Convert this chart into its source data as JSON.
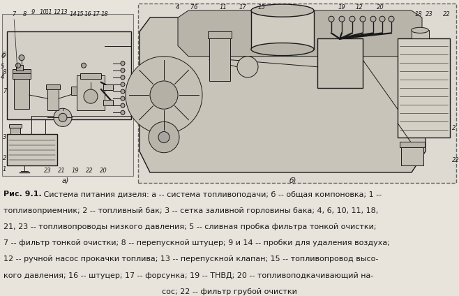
{
  "fig_width": 6.58,
  "fig_height": 4.24,
  "dpi": 100,
  "bg_color": "#e8e4dc",
  "line1_bold": "Рис. 9.1.",
  "line1_rest": " Система питания дизеля: а -- система топливоподачи; б -- общая компоновка; 1 --",
  "line2": "топливоприемник; 2 -- топливный бак; 3 -- сетка заливной горловины бака; 4, 6, 10, 11, 18,",
  "line3": "21, 23 -- топливопроводы низкого давления; 5 -- сливная пробка фильтра тонкой очистки;",
  "line4": "7 -- фильтр тонкой очистки; 8 -- перепускной штуцер; 9 и 14 -- пробки для удаления воздуха;",
  "line5": "12 -- ручной насос прокачки топлива; 13 -- перепускной клапан; 15 -- топливопровод высо-",
  "line6": "кого давления; 16 -- штуцер; 17 -- форсунка; 19 -- ТНВД; 20 -- топливоподкачивающий на-",
  "line7": "сос; 22 -- фильтр грубой очистки",
  "label_a": "а)",
  "label_b": "б)"
}
